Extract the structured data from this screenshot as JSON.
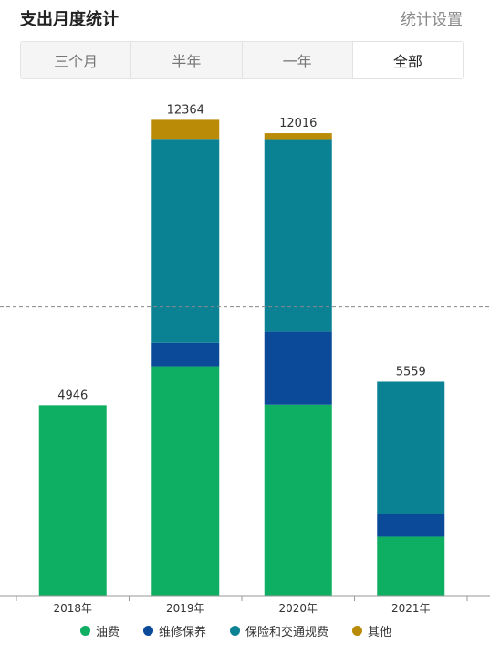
{
  "header": {
    "title": "支出月度统计",
    "settings_label": "统计设置"
  },
  "tabs": [
    {
      "label": "三个月",
      "active": false
    },
    {
      "label": "半年",
      "active": false
    },
    {
      "label": "一年",
      "active": false
    },
    {
      "label": "全部",
      "active": true
    }
  ],
  "chart_data": {
    "type": "bar",
    "stacked": true,
    "categories": [
      "2018年",
      "2019年",
      "2020年",
      "2021年"
    ],
    "totals": [
      4946,
      12364,
      12016,
      5559
    ],
    "series": [
      {
        "name": "油费",
        "color": "#0eaf62",
        "values": [
          4946,
          5960,
          4960,
          1530
        ]
      },
      {
        "name": "维修保养",
        "color": "#0b4a99",
        "values": [
          0,
          610,
          1900,
          590
        ]
      },
      {
        "name": "保险和交通规费",
        "color": "#0a8293",
        "values": [
          0,
          5300,
          5003,
          3439
        ]
      },
      {
        "name": "其他",
        "color": "#b98b06",
        "values": [
          0,
          494,
          153,
          0
        ]
      }
    ],
    "ylim": [
      0,
      12800
    ],
    "average_line": {
      "value": 7500,
      "style": "dashed",
      "color": "#888888"
    },
    "legend_position": "bottom",
    "grid": false
  }
}
